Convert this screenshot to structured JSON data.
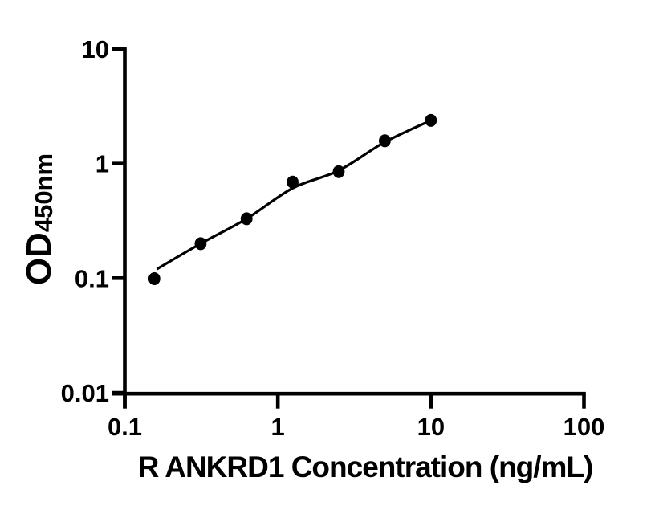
{
  "figure": {
    "background_color": "#ffffff",
    "foreground_color": "#000000"
  },
  "chart_data": {
    "type": "scatter",
    "title": "",
    "xlabel": "R ANKRD1 Concentration (ng/mL)",
    "ylabel_main": "OD",
    "ylabel_sub": "450nm",
    "x_scale": "log",
    "y_scale": "log",
    "xlim": [
      0.1,
      100
    ],
    "ylim": [
      0.01,
      10
    ],
    "grid": false,
    "legend": null,
    "marker_color": "#000000",
    "line_color": "#000000",
    "x_ticks": [
      {
        "value": 0.1,
        "label": "0.1"
      },
      {
        "value": 1,
        "label": "1"
      },
      {
        "value": 10,
        "label": "10"
      },
      {
        "value": 100,
        "label": "100"
      }
    ],
    "y_ticks": [
      {
        "value": 0.01,
        "label": "0.01"
      },
      {
        "value": 0.1,
        "label": "0.1"
      },
      {
        "value": 1,
        "label": "1"
      },
      {
        "value": 10,
        "label": "10"
      }
    ],
    "points": [
      {
        "x": 0.156,
        "y": 0.099
      },
      {
        "x": 0.3125,
        "y": 0.2
      },
      {
        "x": 0.625,
        "y": 0.33
      },
      {
        "x": 1.25,
        "y": 0.69
      },
      {
        "x": 2.5,
        "y": 0.85
      },
      {
        "x": 5,
        "y": 1.58
      },
      {
        "x": 10,
        "y": 2.38
      }
    ],
    "fit_curve": [
      {
        "x": 0.162,
        "y": 0.12
      },
      {
        "x": 0.3125,
        "y": 0.2
      },
      {
        "x": 0.625,
        "y": 0.33
      },
      {
        "x": 1.25,
        "y": 0.61
      },
      {
        "x": 2.5,
        "y": 0.87
      },
      {
        "x": 5,
        "y": 1.54
      },
      {
        "x": 10,
        "y": 2.38
      }
    ]
  }
}
